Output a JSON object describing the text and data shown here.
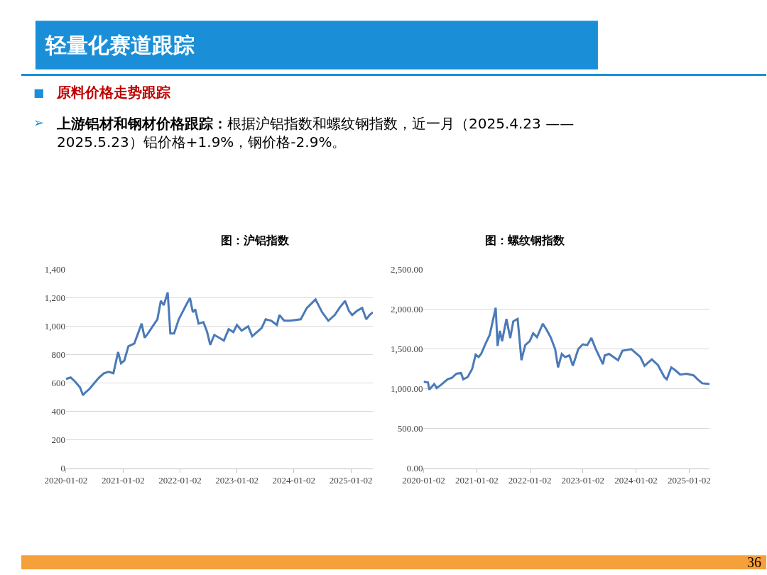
{
  "chart_data": [
    {
      "type": "line",
      "title": "图：沪铝指数",
      "color": "#4a7ab8",
      "annotations": [
        "轻量化赛道跟踪",
        "■",
        "原料价格走势跟踪",
        "➢",
        "上游铝材和钢材价格跟踪：根据沪铝指数和螺纹钢指数，近一月（2025.4.23 ——2025.5.23）铝价格+1.9%，钢价格-2.9%。",
        "36"
      ],
      "x": [
        "2020-01-02",
        "2020-02-01",
        "2020-03-01",
        "2020-04-01",
        "2020-04-20",
        "2020-05-01",
        "2020-06-01",
        "2020-07-01",
        "2020-08-01",
        "2020-09-01",
        "2020-10-01",
        "2020-11-01",
        "2020-12-01",
        "2020-12-20",
        "2021-01-10",
        "2021-02-05",
        "2021-03-15",
        "2021-05-01",
        "2021-05-20",
        "2021-06-10",
        "2021-07-10",
        "2021-08-10",
        "2021-09-01",
        "2021-09-20",
        "2021-10-15",
        "2021-11-01",
        "2021-11-25",
        "2021-12-25",
        "2022-02-10",
        "2022-03-07",
        "2022-03-25",
        "2022-04-10",
        "2022-05-01",
        "2022-06-01",
        "2022-06-25",
        "2022-07-15",
        "2022-08-10",
        "2022-09-10",
        "2022-10-10",
        "2022-11-10",
        "2022-12-10",
        "2023-01-02",
        "2023-02-01",
        "2023-03-15",
        "2023-04-10",
        "2023-05-10",
        "2023-06-10",
        "2023-07-05",
        "2023-08-10",
        "2023-09-15",
        "2023-10-01",
        "2023-11-01",
        "2023-12-10",
        "2024-02-15",
        "2024-03-25",
        "2024-05-20",
        "2024-07-01",
        "2024-08-10",
        "2024-09-20",
        "2024-10-20",
        "2024-11-25",
        "2024-12-20",
        "2025-01-10",
        "2025-02-10",
        "2025-03-15",
        "2025-04-10",
        "2025-05-01",
        "2025-05-23"
      ],
      "values": [
        630,
        640,
        610,
        570,
        515,
        530,
        560,
        600,
        640,
        670,
        680,
        670,
        820,
        740,
        760,
        860,
        880,
        1020,
        920,
        950,
        1000,
        1050,
        1180,
        1150,
        1240,
        950,
        950,
        1050,
        1150,
        1200,
        1100,
        1120,
        1020,
        1030,
        960,
        870,
        940,
        920,
        900,
        980,
        960,
        1010,
        970,
        1000,
        930,
        960,
        990,
        1050,
        1040,
        1010,
        1080,
        1040,
        1040,
        1050,
        1130,
        1190,
        1100,
        1040,
        1080,
        1130,
        1180,
        1110,
        1080,
        1110,
        1130,
        1050,
        1080,
        1100
      ],
      "xlim": [
        "2020-01-02",
        "2025-05-23"
      ],
      "xticks": [
        "2020-01-02",
        "2021-01-02",
        "2022-01-02",
        "2023-01-02",
        "2024-01-02",
        "2025-01-02"
      ],
      "ylim": [
        0,
        1400
      ],
      "yticks": [
        0,
        200,
        400,
        600,
        800,
        {
          "value": 1000,
          "label": "1,000"
        },
        {
          "value": 1200,
          "label": "1,200"
        },
        {
          "value": 1400,
          "label": "1,400"
        }
      ],
      "grid": "y",
      "legend": false
    },
    {
      "type": "line",
      "title": "图：螺纹钢指数",
      "color": "#4a7ab8",
      "x": [
        "2020-01-02",
        "2020-02-01",
        "2020-02-10",
        "2020-03-15",
        "2020-04-01",
        "2020-05-01",
        "2020-06-15",
        "2020-07-15",
        "2020-08-15",
        "2020-09-15",
        "2020-10-01",
        "2020-11-01",
        "2020-12-01",
        "2020-12-25",
        "2021-01-15",
        "2021-02-01",
        "2021-03-01",
        "2021-04-01",
        "2021-05-12",
        "2021-05-25",
        "2021-06-10",
        "2021-06-25",
        "2021-07-25",
        "2021-08-20",
        "2021-09-10",
        "2021-10-10",
        "2021-11-05",
        "2021-12-01",
        "2022-01-01",
        "2022-01-25",
        "2022-02-20",
        "2022-04-01",
        "2022-04-25",
        "2022-05-25",
        "2022-06-25",
        "2022-07-15",
        "2022-08-10",
        "2022-09-01",
        "2022-10-01",
        "2022-10-25",
        "2022-12-01",
        "2023-01-01",
        "2023-02-01",
        "2023-03-01",
        "2023-04-01",
        "2023-05-20",
        "2023-06-01",
        "2023-07-01",
        "2023-08-01",
        "2023-09-01",
        "2023-10-01",
        "2023-12-01",
        "2024-01-01",
        "2024-02-01",
        "2024-03-01",
        "2024-04-01",
        "2024-04-20",
        "2024-06-01",
        "2024-07-15",
        "2024-08-01",
        "2024-09-01",
        "2024-10-01",
        "2024-11-01",
        "2024-12-15",
        "2025-02-01",
        "2025-03-01",
        "2025-04-01",
        "2025-05-23"
      ],
      "values": [
        1090,
        1080,
        990,
        1060,
        1010,
        1050,
        1120,
        1140,
        1190,
        1200,
        1120,
        1150,
        1250,
        1430,
        1400,
        1440,
        1560,
        1680,
        2020,
        1540,
        1730,
        1600,
        1880,
        1640,
        1850,
        1880,
        1360,
        1550,
        1600,
        1700,
        1650,
        1820,
        1750,
        1650,
        1500,
        1270,
        1440,
        1400,
        1420,
        1290,
        1500,
        1560,
        1550,
        1640,
        1500,
        1310,
        1420,
        1440,
        1400,
        1360,
        1480,
        1500,
        1450,
        1400,
        1290,
        1340,
        1370,
        1300,
        1150,
        1120,
        1270,
        1230,
        1180,
        1190,
        1170,
        1120,
        1070,
        1060
      ],
      "xlim": [
        "2020-01-02",
        "2025-05-23"
      ],
      "xticks": [
        "2020-01-02",
        "2021-01-02",
        "2022-01-02",
        "2023-01-02",
        "2024-01-02",
        "2025-01-02"
      ],
      "ylim": [
        0,
        2500
      ],
      "yticks": [
        {
          "value": 0,
          "label": "0.00"
        },
        {
          "value": 500,
          "label": "500.00"
        },
        {
          "value": 1000,
          "label": "1,000.00"
        },
        {
          "value": 1500,
          "label": "1,500.00"
        },
        {
          "value": 2000,
          "label": "2,000.00"
        },
        {
          "value": 2500,
          "label": "2,500.00"
        }
      ],
      "grid": "y",
      "legend": false
    }
  ]
}
